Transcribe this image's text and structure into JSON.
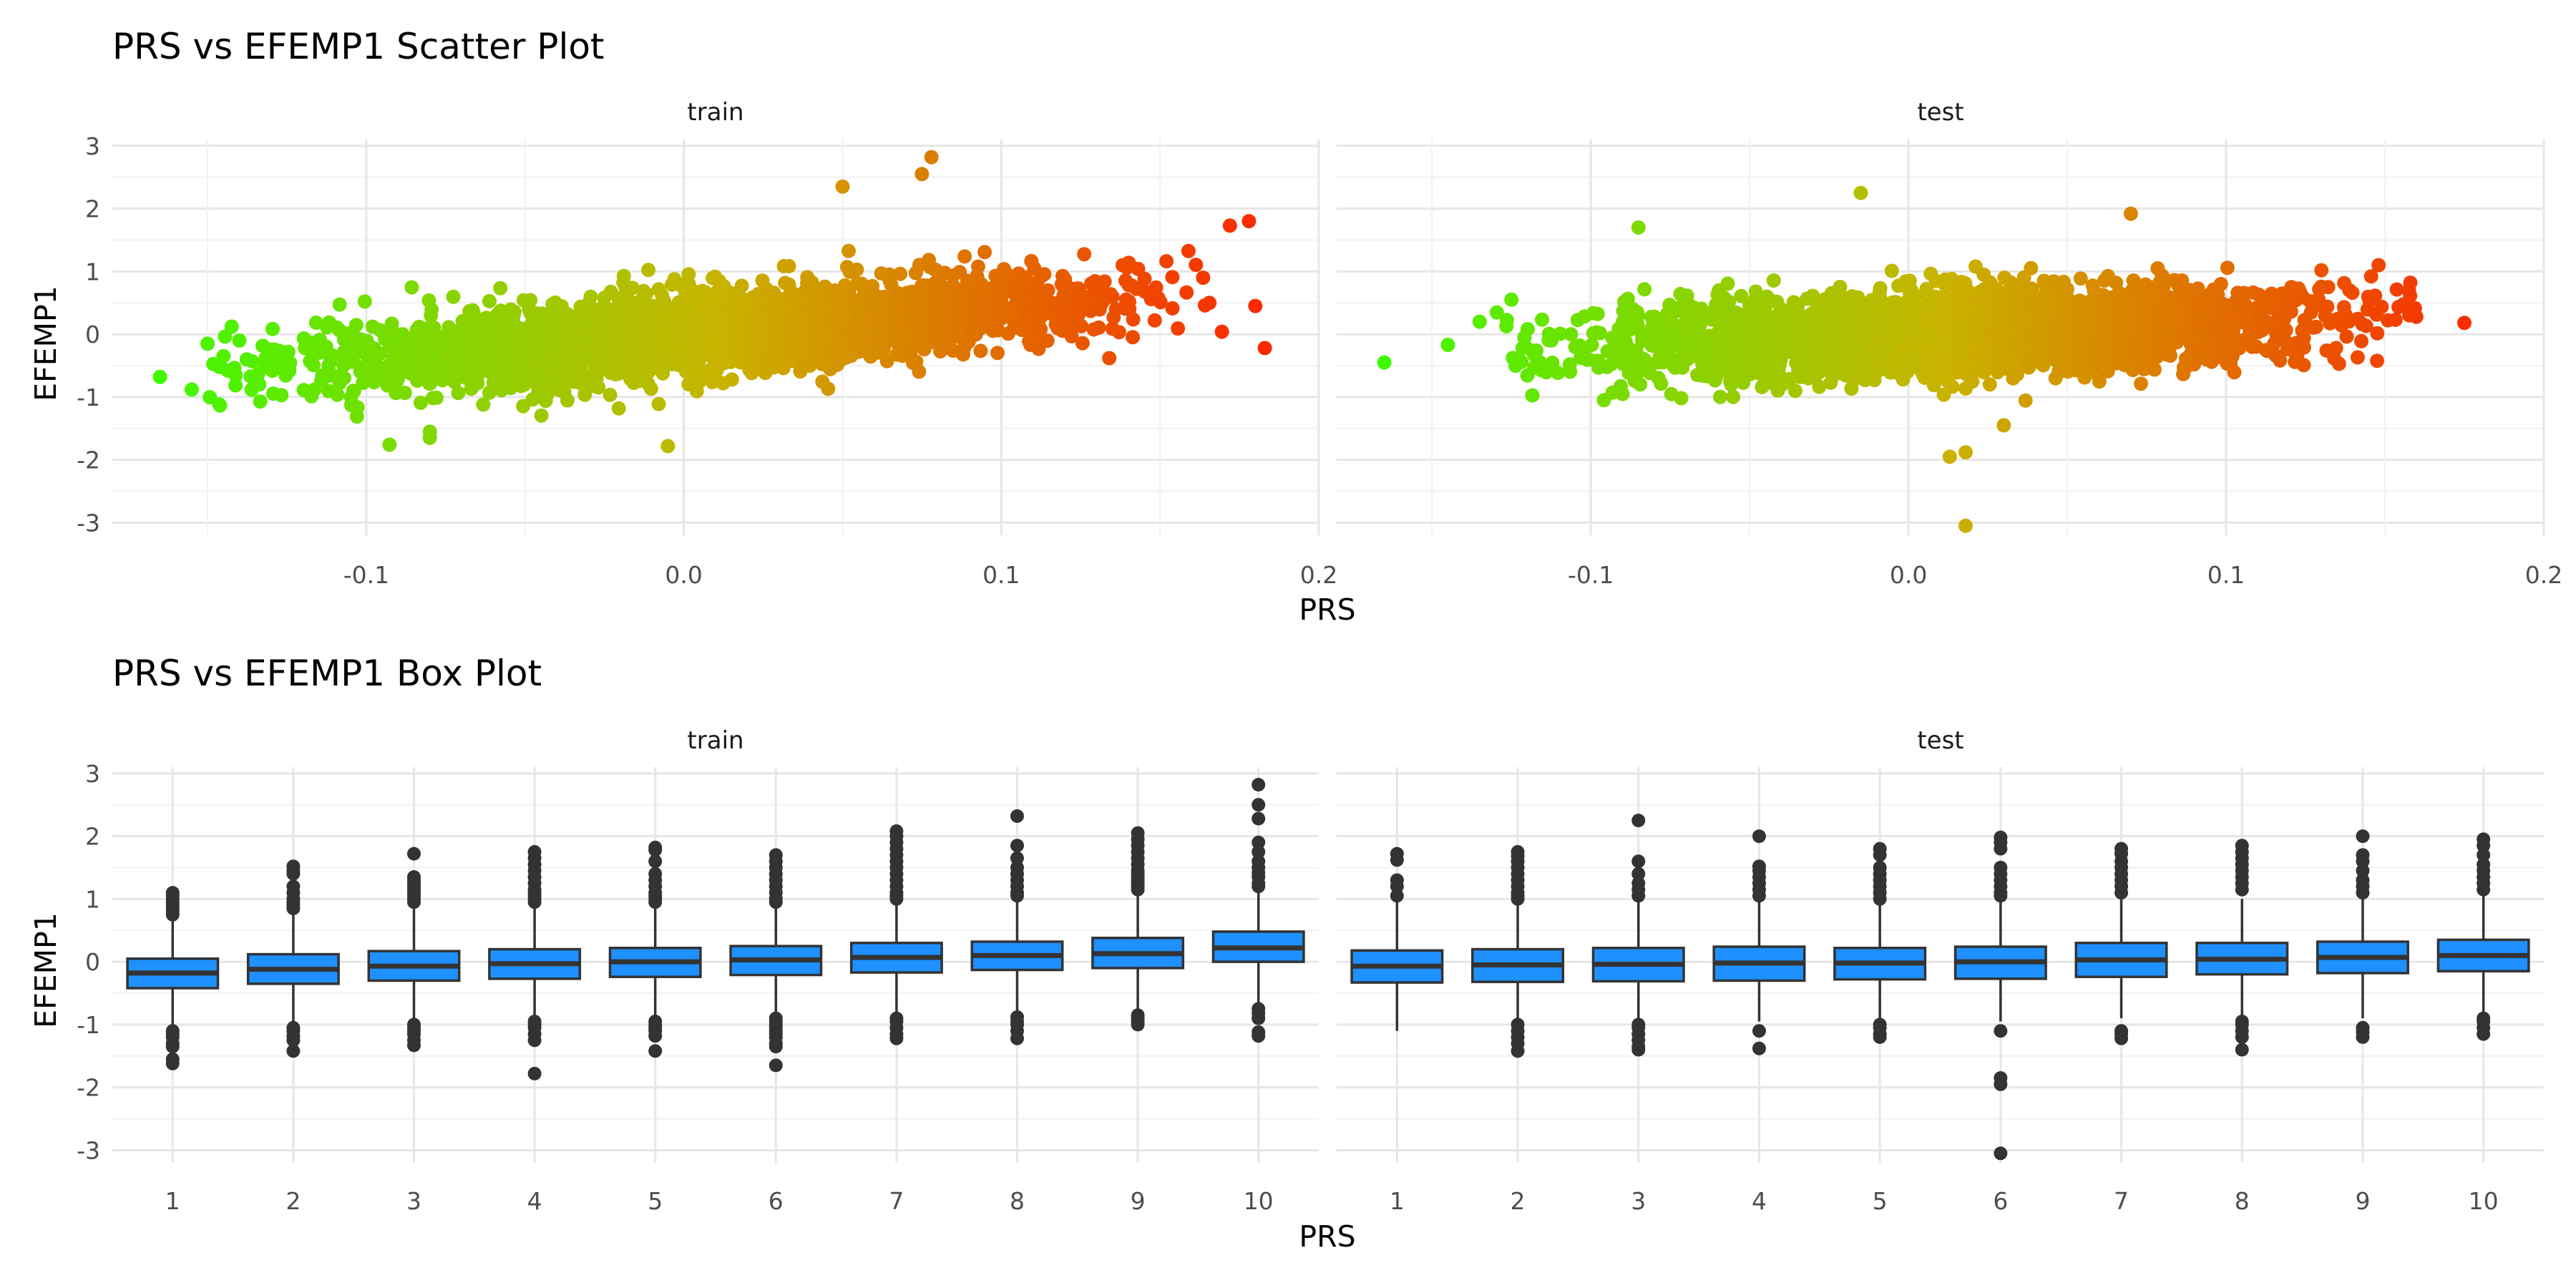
{
  "chart_data": [
    {
      "type": "scatter",
      "title": "PRS vs EFEMP1 Scatter Plot",
      "xlabel": "PRS",
      "ylabel": "EFEMP1",
      "facets": [
        "train",
        "test"
      ],
      "xlim": [
        -0.18,
        0.2
      ],
      "ylim": [
        -3.2,
        3.1
      ],
      "xticks": [
        "-0.1",
        "0.0",
        "0.1",
        "0.2"
      ],
      "yticks": [
        "3",
        "2",
        "1",
        "0",
        "-1",
        "-2",
        "-3"
      ],
      "grid": true,
      "legend": "none",
      "color_scale": {
        "variable": "PRS",
        "low": "#33ff00",
        "mid": "#c8b400",
        "high": "#ff1a00"
      },
      "trend": {
        "train": {
          "slope": 3.8,
          "intercept": 0.0,
          "sd": 0.34,
          "x_range": [
            -0.14,
            0.16
          ]
        },
        "test": {
          "slope": 1.8,
          "intercept": 0.0,
          "sd": 0.33,
          "x_range": [
            -0.12,
            0.15
          ]
        }
      },
      "highlighted_points": {
        "train": [
          [
            -0.165,
            -0.68
          ],
          [
            -0.155,
            -0.88
          ],
          [
            -0.15,
            -0.15
          ],
          [
            -0.145,
            -0.35
          ],
          [
            -0.14,
            -0.1
          ],
          [
            0.178,
            1.8
          ],
          [
            0.172,
            1.73
          ],
          [
            0.183,
            -0.22
          ],
          [
            0.078,
            2.82
          ],
          [
            0.075,
            2.55
          ],
          [
            0.05,
            2.35
          ],
          [
            -0.005,
            -1.78
          ],
          [
            -0.08,
            -1.65
          ],
          [
            -0.08,
            -1.55
          ],
          [
            0.18,
            0.45
          ]
        ],
        "test": [
          [
            -0.165,
            -0.45
          ],
          [
            -0.145,
            -0.17
          ],
          [
            -0.135,
            0.2
          ],
          [
            -0.125,
            0.55
          ],
          [
            -0.085,
            1.7
          ],
          [
            -0.09,
            -0.95
          ],
          [
            0.018,
            -3.05
          ],
          [
            0.018,
            -1.88
          ],
          [
            0.013,
            -1.95
          ],
          [
            -0.015,
            2.25
          ],
          [
            0.07,
            1.92
          ],
          [
            0.175,
            0.18
          ],
          [
            0.158,
            0.82
          ],
          [
            0.148,
            1.1
          ],
          [
            0.03,
            -1.45
          ]
        ]
      }
    },
    {
      "type": "box",
      "title": "PRS vs EFEMP1 Box Plot",
      "xlabel": "PRS",
      "ylabel": "EFEMP1",
      "facets": [
        "train",
        "test"
      ],
      "categories": [
        "1",
        "2",
        "3",
        "4",
        "5",
        "6",
        "7",
        "8",
        "9",
        "10"
      ],
      "ylim": [
        -3.2,
        3.1
      ],
      "yticks": [
        "3",
        "2",
        "1",
        "0",
        "-1",
        "-2",
        "-3"
      ],
      "fill": "#1e90ff",
      "stroke": "#333333",
      "grid": true,
      "series": [
        {
          "facet": "train",
          "boxes": [
            {
              "q1": -0.42,
              "median": -0.18,
              "q3": 0.05,
              "whisker_low": -1.05,
              "whisker_high": 0.68,
              "outliers": [
                1.1,
                1.05,
                1.0,
                0.95,
                0.9,
                0.85,
                0.8,
                0.75,
                -1.1,
                -1.15,
                -1.2,
                -1.3,
                -1.35,
                -1.55,
                -1.62
              ]
            },
            {
              "q1": -0.35,
              "median": -0.12,
              "q3": 0.12,
              "whisker_low": -0.98,
              "whisker_high": 0.78,
              "outliers": [
                1.52,
                1.45,
                1.4,
                1.2,
                1.1,
                1.0,
                0.95,
                0.9,
                0.85,
                -1.05,
                -1.1,
                -1.18,
                -1.25,
                -1.42
              ]
            },
            {
              "q1": -0.3,
              "median": -0.07,
              "q3": 0.17,
              "whisker_low": -0.95,
              "whisker_high": 0.88,
              "outliers": [
                1.72,
                1.35,
                1.3,
                1.25,
                1.2,
                1.15,
                1.1,
                1.05,
                1.0,
                0.95,
                -1.0,
                -1.05,
                -1.1,
                -1.15,
                -1.25,
                -1.33
              ]
            },
            {
              "q1": -0.27,
              "median": -0.03,
              "q3": 0.2,
              "whisker_low": -0.9,
              "whisker_high": 0.9,
              "outliers": [
                1.75,
                1.65,
                1.55,
                1.45,
                1.35,
                1.25,
                1.15,
                1.1,
                1.05,
                1.0,
                0.95,
                -0.95,
                -1.0,
                -1.05,
                -1.15,
                -1.25,
                -1.78
              ]
            },
            {
              "q1": -0.24,
              "median": 0.0,
              "q3": 0.22,
              "whisker_low": -0.9,
              "whisker_high": 0.85,
              "outliers": [
                1.82,
                1.78,
                1.6,
                1.4,
                1.3,
                1.2,
                1.1,
                1.05,
                1.0,
                0.95,
                -0.95,
                -1.0,
                -1.05,
                -1.1,
                -1.18,
                -1.42
              ]
            },
            {
              "q1": -0.21,
              "median": 0.03,
              "q3": 0.25,
              "whisker_low": -0.85,
              "whisker_high": 0.9,
              "outliers": [
                1.7,
                1.6,
                1.5,
                1.4,
                1.3,
                1.2,
                1.1,
                1.0,
                0.95,
                -0.9,
                -0.95,
                -1.0,
                -1.05,
                -1.1,
                -1.15,
                -1.2,
                -1.3,
                -1.35,
                -1.65
              ]
            },
            {
              "q1": -0.17,
              "median": 0.07,
              "q3": 0.3,
              "whisker_low": -0.85,
              "whisker_high": 0.95,
              "outliers": [
                2.08,
                2.0,
                1.9,
                1.8,
                1.7,
                1.6,
                1.5,
                1.4,
                1.3,
                1.2,
                1.1,
                1.05,
                1.0,
                -0.9,
                -0.95,
                -1.05,
                -1.15,
                -1.22
              ]
            },
            {
              "q1": -0.13,
              "median": 0.1,
              "q3": 0.32,
              "whisker_low": -0.8,
              "whisker_high": 0.98,
              "outliers": [
                2.32,
                1.85,
                1.65,
                1.5,
                1.4,
                1.3,
                1.2,
                1.1,
                1.05,
                -0.88,
                -0.95,
                -1.0,
                -1.1,
                -1.22
              ]
            },
            {
              "q1": -0.1,
              "median": 0.13,
              "q3": 0.38,
              "whisker_low": -0.78,
              "whisker_high": 1.1,
              "outliers": [
                2.05,
                1.95,
                1.85,
                1.75,
                1.65,
                1.55,
                1.45,
                1.4,
                1.35,
                1.3,
                1.25,
                1.2,
                1.15,
                -0.85,
                -0.9,
                -0.95,
                -1.0
              ]
            },
            {
              "q1": 0.0,
              "median": 0.22,
              "q3": 0.48,
              "whisker_low": -0.65,
              "whisker_high": 1.15,
              "outliers": [
                2.82,
                2.5,
                2.28,
                1.9,
                1.75,
                1.6,
                1.5,
                1.42,
                1.35,
                1.25,
                1.2,
                -0.75,
                -0.82,
                -0.9,
                -1.12,
                -1.18
              ]
            }
          ]
        },
        {
          "facet": "test",
          "boxes": [
            {
              "q1": -0.33,
              "median": -0.07,
              "q3": 0.18,
              "whisker_low": -1.1,
              "whisker_high": 0.95,
              "outliers": [
                1.72,
                1.62,
                1.3,
                1.2,
                1.05
              ]
            },
            {
              "q1": -0.32,
              "median": -0.05,
              "q3": 0.2,
              "whisker_low": -0.95,
              "whisker_high": 0.95,
              "outliers": [
                1.75,
                1.68,
                1.6,
                1.5,
                1.4,
                1.3,
                1.2,
                1.1,
                1.05,
                1.0,
                -1.0,
                -1.1,
                -1.2,
                -1.3,
                -1.42
              ]
            },
            {
              "q1": -0.31,
              "median": -0.04,
              "q3": 0.22,
              "whisker_low": -0.95,
              "whisker_high": 0.95,
              "outliers": [
                2.25,
                1.6,
                1.4,
                1.25,
                1.15,
                1.05,
                -1.0,
                -1.05,
                -1.15,
                -1.25,
                -1.35,
                -1.4
              ]
            },
            {
              "q1": -0.3,
              "median": -0.02,
              "q3": 0.24,
              "whisker_low": -0.95,
              "whisker_high": 1.0,
              "outliers": [
                2.0,
                1.52,
                1.45,
                1.35,
                1.25,
                1.15,
                1.05,
                -1.1,
                -1.38
              ]
            },
            {
              "q1": -0.28,
              "median": -0.02,
              "q3": 0.22,
              "whisker_low": -0.95,
              "whisker_high": 0.95,
              "outliers": [
                1.8,
                1.7,
                1.5,
                1.4,
                1.3,
                1.2,
                1.1,
                1.0,
                -1.0,
                -1.05,
                -1.15,
                -1.2
              ]
            },
            {
              "q1": -0.27,
              "median": 0.0,
              "q3": 0.24,
              "whisker_low": -0.95,
              "whisker_high": 0.95,
              "outliers": [
                1.98,
                1.9,
                1.8,
                1.5,
                1.4,
                1.3,
                1.2,
                1.1,
                1.05,
                -1.1,
                -1.85,
                -1.95,
                -3.05
              ]
            },
            {
              "q1": -0.24,
              "median": 0.03,
              "q3": 0.3,
              "whisker_low": -0.9,
              "whisker_high": 1.0,
              "outliers": [
                1.8,
                1.72,
                1.6,
                1.5,
                1.4,
                1.3,
                1.2,
                1.1,
                -1.1,
                -1.15,
                -1.22
              ]
            },
            {
              "q1": -0.2,
              "median": 0.04,
              "q3": 0.3,
              "whisker_low": -0.9,
              "whisker_high": 1.0,
              "outliers": [
                1.85,
                1.75,
                1.65,
                1.55,
                1.45,
                1.35,
                1.25,
                1.15,
                -0.95,
                -1.0,
                -1.1,
                -1.2,
                -1.4
              ]
            },
            {
              "q1": -0.18,
              "median": 0.07,
              "q3": 0.32,
              "whisker_low": -0.9,
              "whisker_high": 1.0,
              "outliers": [
                2.0,
                1.7,
                1.6,
                1.45,
                1.3,
                1.2,
                1.1,
                -1.05,
                -1.12,
                -1.2
              ]
            },
            {
              "q1": -0.15,
              "median": 0.1,
              "q3": 0.35,
              "whisker_low": -0.85,
              "whisker_high": 1.05,
              "outliers": [
                1.95,
                1.85,
                1.7,
                1.55,
                1.45,
                1.35,
                1.25,
                1.15,
                -0.9,
                -0.95,
                -1.05,
                -1.15
              ]
            }
          ]
        }
      ]
    }
  ]
}
